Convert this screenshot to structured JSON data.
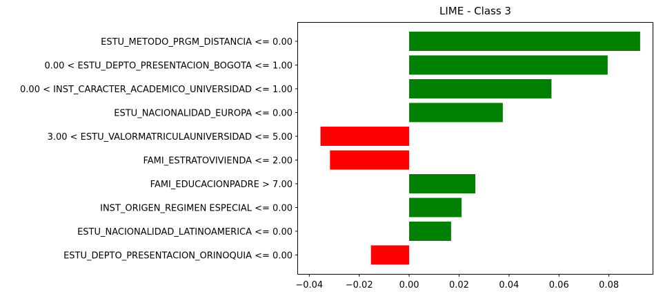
{
  "chart_data": {
    "type": "bar",
    "orientation": "horizontal",
    "title": "LIME - Class 3",
    "xlabel": "",
    "ylabel": "",
    "xlim": [
      -0.0445,
      0.0975
    ],
    "xticks": [
      -0.04,
      -0.02,
      0.0,
      0.02,
      0.04,
      0.06,
      0.08
    ],
    "xtick_labels": [
      "−0.04",
      "−0.02",
      "0.00",
      "0.02",
      "0.04",
      "0.06",
      "0.08"
    ],
    "grid": false,
    "legend": "none",
    "colors": {
      "positive": "#008000",
      "negative": "#ff0000"
    },
    "categories": [
      "ESTU_METODO_PRGM_DISTANCIA <= 0.00",
      "0.00 < ESTU_DEPTO_PRESENTACION_BOGOTA <= 1.00",
      "0.00 < INST_CARACTER_ACADEMICO_UNIVERSIDAD <= 1.00",
      "ESTU_NACIONALIDAD_EUROPA <= 0.00",
      "3.00 < ESTU_VALORMATRICULAUNIVERSIDAD <= 5.00",
      "FAMI_ESTRATOVIVIENDA <= 2.00",
      "FAMI_EDUCACIONPADRE > 7.00",
      "INST_ORIGEN_REGIMEN ESPECIAL <= 0.00",
      "ESTU_NACIONALIDAD_LATINOAMERICA <= 0.00",
      "ESTU_DEPTO_PRESENTACION_ORINOQUIA <= 0.00"
    ],
    "values": [
      0.0925,
      0.0795,
      0.057,
      0.0375,
      -0.0355,
      -0.0317,
      0.0265,
      0.021,
      0.0168,
      -0.0153
    ]
  }
}
